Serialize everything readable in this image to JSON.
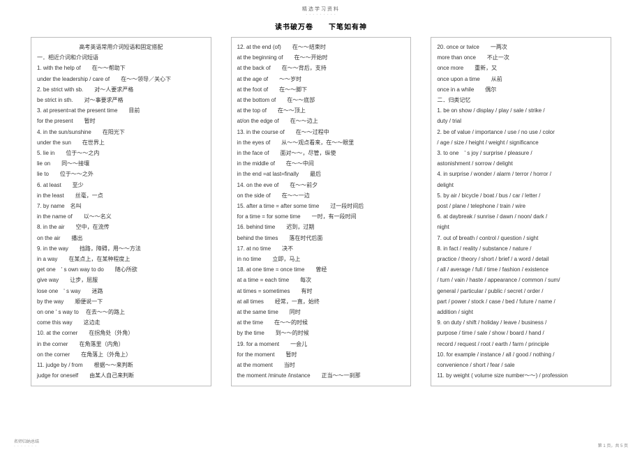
{
  "header_note": "精选学习资料",
  "title": "读书破万卷　　下笔如有神",
  "footer_left": "名师归纳总结",
  "footer_right": "第 1 页，共 5 页",
  "col1": {
    "heading": "高考英语常用介词短语和固定搭配",
    "lines": [
      "一．相近介词和介词短语",
      "1. with the help of　　在～～帮助下",
      "under the leadership / care of　　在～～领导／关心下",
      "2. be strict with sb.　　对～人要求严格",
      "be strict in sth.　　对～事要求严格",
      "3. at present=at the present time　　目前",
      "for the present　　暂时",
      "4. in the sun/sunshine　　在阳光下",
      "under the sun　　在世界上",
      "5. lie in　　位于～～之内",
      "lie on　　同～～接壤",
      "lie to　　位于～～之外",
      "6. at least　　至少",
      "in the least　　丝毫，一点",
      "7. by name　名叫",
      "in the name of　　以～～名义",
      "8. in the air　　空中，在流传",
      "on the air　　播出",
      "9. in the way　　挡路，障碍，用～～方法",
      "in a way　　在某点上，在某种程度上",
      "get one　' s own way to do　　随心所欲",
      "give way　　让步，屈服",
      "lose one　' s way　　迷路",
      "by the way　　顺便说一下",
      "on one ' s way to　 在去～～的路上",
      "come this way　　这边走",
      "10. at the corner　　在拐角处（外角）",
      "in the corner　　在角落里（内角）",
      "on the corner　　在角落上（外角上）",
      "11. judge by / from　　根据～～来判断",
      "judge for oneself　　由某人自己来判断"
    ]
  },
  "col2": {
    "lines": [
      "12. at the end (of)　　在～～结束时",
      "at the beginning of　　在～～开始时",
      "at the back of　　在～～背后，支持",
      "at the age of　　～～岁时",
      "at the foot of　　在～～脚下",
      "at the bottom of　　在～～底部",
      "at the top of　　在～～顶上",
      "at/on the edge of　　在～～边上",
      "13. in the course of　　在～～过程中",
      "in the eyes of　　从～～观点看来，在～～眼里",
      "in the face of　　面对～～，尽管，纵使",
      "in the middle of　　在～～中间",
      "in the end =at last=finally　　最后",
      "14. on the eve of　　在～～前夕",
      "on the side of　　在～～一边",
      "15. after a time = after some time　　过一段时间后",
      "for a time = for some time　　一时，有一段时间",
      "16. behind time　　迟到，过期",
      "behind the times　　落在时代后面",
      "17. at no time　　决不",
      "in no time　　立即，马上",
      "18. at one time = once time　　曾经",
      "at a time = each time　　每次",
      "at times = sometimes　　有时",
      "at all times　　经常，一直，始终",
      "at the same time　　同时",
      "at the time　　在～～的时候",
      "by the time　　到～～的时候",
      "19. for a moment　　一会儿",
      "for the moment　　暂时",
      "at the moment　　当时",
      "the moment /minute /instance　　正当～～一刹那"
    ]
  },
  "col3": {
    "lines": [
      "20. once or twice　　一两次",
      "more than once　　不止一次",
      "once more　　重新，又",
      "once upon a time　　从前",
      "once in a while　　偶尔",
      "二．归类记忆",
      "1. be on show / display / play / sale / strike /",
      "duty / trial",
      "2. be of value / importance / use / no use / color",
      "/ age / size / height / weight / significance",
      "3. to one　' s joy / surprise / pleasure /",
      "astonishment / sorrow / delight",
      "4. in surprise / wonder / alarm / terror / horror /",
      "delight",
      "5. by air / bicycle / boat / bus / car / letter /",
      "post / plane / telephone / train / wire",
      "6. at daybreak / sunrise / dawn / noon/ dark /",
      "night",
      "7. out of breath / control / question / sight",
      "8. in fact / reality / substance / nature /",
      "practice / theory / short / brief / a word / detail",
      "/ all / average / full / time / fashion / existence",
      "/ turn / vain / haste / appearance / common / sum/",
      "general / particular / public / secret / order /",
      "part / power / stock / case / bed / future / name /",
      "addition / sight",
      "9. on duty / shift / holiday / leave / business /",
      "purpose / time / sale / show / board / hand /",
      "record / request / root / earth / farm / principle",
      "10. for example / instance / all / good / nothing /",
      "convenience / short / fear / sale",
      "11. by weight ( volume size number～～) / profession"
    ]
  }
}
